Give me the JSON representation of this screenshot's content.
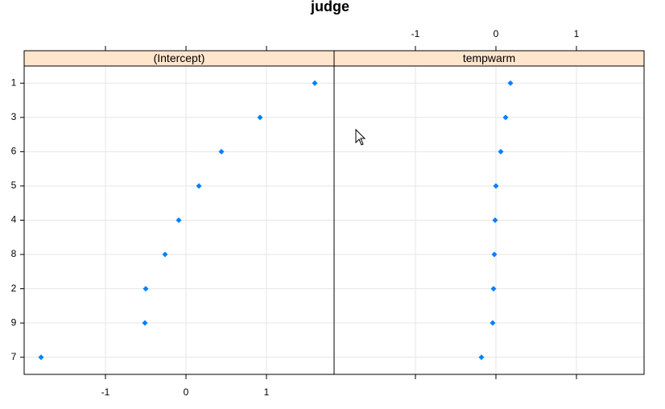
{
  "chart_data": {
    "type": "dotplot",
    "title": "judge",
    "categories": [
      "1",
      "3",
      "6",
      "5",
      "4",
      "8",
      "2",
      "9",
      "7"
    ],
    "xlim": [
      -2.01,
      1.84
    ],
    "xticks": [
      -1,
      0,
      1
    ],
    "grid": true,
    "color": "#0080ff",
    "panels": [
      {
        "name": "(Intercept)",
        "values": [
          1.6,
          0.92,
          0.44,
          0.16,
          -0.09,
          -0.26,
          -0.5,
          -0.51,
          -1.8
        ]
      },
      {
        "name": "tempwarm",
        "values": [
          0.18,
          0.12,
          0.06,
          0.0,
          -0.01,
          -0.02,
          -0.03,
          -0.04,
          -0.18
        ]
      }
    ]
  }
}
